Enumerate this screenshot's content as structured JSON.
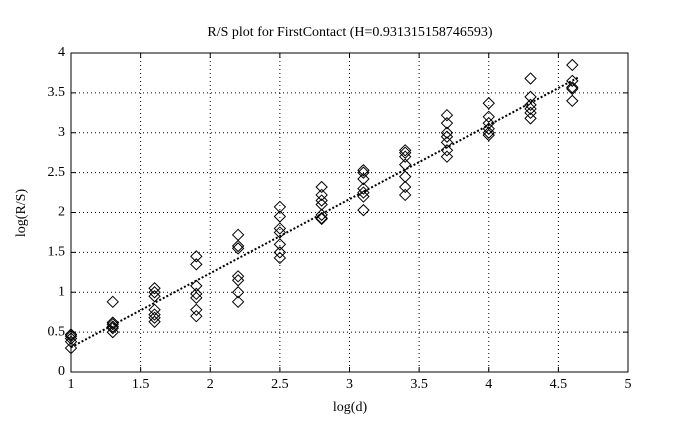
{
  "chart_data": {
    "type": "scatter",
    "title": "R/S plot for FirstContact (H=0.931315158746593)",
    "x_label": "log(d)",
    "y_label": "log(R/S)",
    "xlim": [
      1,
      5
    ],
    "ylim": [
      0,
      4
    ],
    "xticks": [
      1,
      1.5,
      2,
      2.5,
      3,
      3.5,
      4,
      4.5,
      5
    ],
    "yticks": [
      0,
      0.5,
      1,
      1.5,
      2,
      2.5,
      3,
      3.5,
      4
    ],
    "grid": true,
    "series": [
      {
        "type": "scatter",
        "marker": "diamond",
        "color": "#000000",
        "x": [
          1,
          1,
          1,
          1,
          1,
          1.3,
          1.3,
          1.3,
          1.3,
          1.3,
          1.3,
          1.6,
          1.6,
          1.6,
          1.6,
          1.6,
          1.6,
          1.6,
          1.9,
          1.9,
          1.9,
          1.9,
          1.9,
          1.9,
          1.9,
          2.2,
          2.2,
          2.2,
          2.2,
          2.2,
          2.2,
          2.2,
          2.5,
          2.5,
          2.5,
          2.5,
          2.5,
          2.5,
          2.5,
          2.8,
          2.8,
          2.8,
          2.8,
          2.8,
          2.8,
          2.8,
          3.1,
          3.1,
          3.1,
          3.1,
          3.1,
          3.1,
          3.1,
          3.4,
          3.4,
          3.4,
          3.4,
          3.4,
          3.4,
          3.4,
          3.7,
          3.7,
          3.7,
          3.7,
          3.7,
          3.7,
          3.7,
          4.0,
          4.0,
          4.0,
          4.0,
          4.0,
          4.0,
          4.3,
          4.3,
          4.3,
          4.3,
          4.3,
          4.3,
          4.6,
          4.6,
          4.6,
          4.6,
          4.6
        ],
        "values": [
          0.47,
          0.45,
          0.42,
          0.38,
          0.3,
          0.88,
          0.62,
          0.6,
          0.57,
          0.55,
          0.5,
          1.05,
          1.0,
          0.95,
          0.78,
          0.72,
          0.68,
          0.63,
          1.45,
          1.35,
          1.08,
          0.98,
          0.93,
          0.78,
          0.7,
          1.72,
          1.58,
          1.55,
          1.2,
          1.15,
          1.0,
          0.88,
          2.07,
          1.95,
          1.8,
          1.75,
          1.6,
          1.5,
          1.43,
          2.32,
          2.22,
          2.15,
          2.1,
          1.97,
          1.93,
          1.92,
          2.53,
          2.5,
          2.42,
          2.3,
          2.25,
          2.2,
          2.03,
          2.78,
          2.75,
          2.7,
          2.6,
          2.45,
          2.32,
          2.22,
          3.22,
          3.12,
          3.0,
          2.95,
          2.88,
          2.78,
          2.7,
          3.37,
          3.2,
          3.12,
          3.05,
          3.0,
          2.97,
          3.68,
          3.45,
          3.35,
          3.3,
          3.25,
          3.18,
          3.85,
          3.65,
          3.57,
          3.55,
          3.4
        ]
      },
      {
        "type": "line",
        "dash": "dotted",
        "color": "#000000",
        "x": [
          1,
          4.65
        ],
        "values": [
          0.31,
          3.7
        ]
      }
    ]
  }
}
